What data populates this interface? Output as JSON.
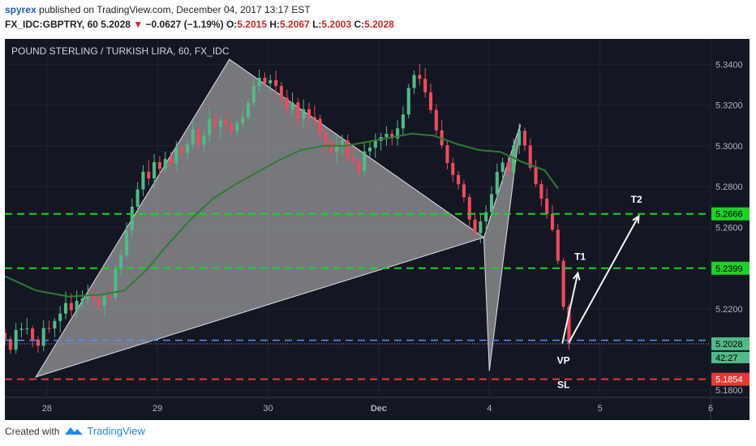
{
  "header": {
    "user": "spyrex",
    "published": " published on TradingView.com, December 04, 2017 13:17 EST",
    "symbol": "FX_IDC:GBPTRY, 60 ",
    "last": "5.2028",
    "change": "−0.0627 (−1.19%)",
    "o_label": "O:",
    "o": "5.2015",
    "h_label": "H:",
    "h": "5.2067",
    "l_label": "L:",
    "l": "5.2003",
    "c_label": "C:",
    "c": "5.2028"
  },
  "footer": {
    "created_with": "Created with",
    "brand": "TradingView"
  },
  "colors": {
    "background": "#131722",
    "up": "#53b987",
    "down": "#eb4d5c",
    "ma": "#2e7d32",
    "pattern_fill": "#c8c8c8",
    "green_level": "#1fd12b",
    "red_level": "#e53935",
    "blue_level": "#5b8def",
    "white_arrow": "#f5f5f5"
  },
  "chart_data": {
    "type": "candlestick",
    "title": "POUND STERLING / TURKISH LIRA, 60, FX_IDC",
    "y_ticks": [
      "5.3400",
      "5.3200",
      "5.3000",
      "5.2800",
      "5.2600",
      "5.2200",
      "5.1800"
    ],
    "ylim": [
      5.1765,
      5.3525
    ],
    "x_ticks": [
      {
        "x": 1.0,
        "label": "28"
      },
      {
        "x": 2.0,
        "label": "29"
      },
      {
        "x": 3.0,
        "label": "30"
      },
      {
        "x": 4.0,
        "label": "Dec"
      },
      {
        "x": 5.0,
        "label": "4"
      },
      {
        "x": 6.0,
        "label": "5"
      },
      {
        "x": 7.0,
        "label": "6"
      }
    ],
    "xlim": [
      0.62,
      7.0
    ],
    "price_labels": [
      {
        "value": 5.2666,
        "label": "5.2666",
        "color": "#1fd12b"
      },
      {
        "value": 5.2399,
        "label": "5.2399",
        "color": "#1fd12b"
      },
      {
        "value": 5.2028,
        "label": "5.2028",
        "color": "#53b987"
      },
      {
        "value": 5.1854,
        "label": "5.1854",
        "color": "#e53935"
      }
    ],
    "countdown": "42:27",
    "levels": [
      {
        "value": 5.2666,
        "kind": "target"
      },
      {
        "value": 5.2399,
        "kind": "target"
      },
      {
        "value": 5.2045,
        "kind": "entry"
      },
      {
        "value": 5.1854,
        "kind": "stop"
      }
    ],
    "pattern_points": [
      {
        "x": 0.9,
        "y": 5.1865
      },
      {
        "x": 2.65,
        "y": 5.3425
      },
      {
        "x": 4.95,
        "y": 5.255
      },
      {
        "x": 5.28,
        "y": 5.3105
      },
      {
        "x": 5.0,
        "y": 5.1895
      }
    ],
    "annotations": [
      {
        "text": "T1",
        "x": 5.82,
        "y": 5.244
      },
      {
        "text": "T2",
        "x": 6.33,
        "y": 5.272
      },
      {
        "text": "VP",
        "x": 5.67,
        "y": 5.193
      },
      {
        "text": "SL",
        "x": 5.67,
        "y": 5.181
      }
    ],
    "arrows": [
      {
        "from": [
          5.66,
          5.203
        ],
        "to": [
          5.8,
          5.2375
        ]
      },
      {
        "from": [
          5.72,
          5.2035
        ],
        "to": [
          6.35,
          5.2655
        ]
      }
    ],
    "ma": [
      [
        0.62,
        5.236
      ],
      [
        0.9,
        5.229
      ],
      [
        1.2,
        5.226
      ],
      [
        1.5,
        5.227
      ],
      [
        1.7,
        5.229
      ],
      [
        1.9,
        5.239
      ],
      [
        2.1,
        5.252
      ],
      [
        2.3,
        5.264
      ],
      [
        2.5,
        5.274
      ],
      [
        2.7,
        5.281
      ],
      [
        2.9,
        5.287
      ],
      [
        3.1,
        5.293
      ],
      [
        3.3,
        5.298
      ],
      [
        3.5,
        5.3
      ],
      [
        3.7,
        5.3
      ],
      [
        3.9,
        5.302
      ],
      [
        4.1,
        5.304
      ],
      [
        4.3,
        5.306
      ],
      [
        4.5,
        5.305
      ],
      [
        4.7,
        5.301
      ],
      [
        4.9,
        5.298
      ],
      [
        5.1,
        5.297
      ],
      [
        5.3,
        5.292
      ],
      [
        5.5,
        5.288
      ],
      [
        5.62,
        5.279
      ]
    ],
    "ohlc": [
      [
        0.62,
        5.2082,
        5.2104,
        5.2019,
        5.2051
      ],
      [
        0.67,
        5.2051,
        5.2065,
        5.1977,
        5.1999
      ],
      [
        0.72,
        5.1999,
        5.2129,
        5.1981,
        5.2096
      ],
      [
        0.77,
        5.2096,
        5.2132,
        5.206,
        5.2102
      ],
      [
        0.82,
        5.2102,
        5.2155,
        5.2074,
        5.2103
      ],
      [
        0.87,
        5.2103,
        5.2116,
        5.2011,
        5.2049
      ],
      [
        0.92,
        5.2049,
        5.2066,
        5.1984,
        5.2018
      ],
      [
        0.97,
        5.2018,
        5.2143,
        5.1991,
        5.2105
      ],
      [
        1.02,
        5.2105,
        5.2142,
        5.208,
        5.2103
      ],
      [
        1.07,
        5.2103,
        5.2155,
        5.206,
        5.214
      ],
      [
        1.12,
        5.214,
        5.2213,
        5.2084,
        5.2176
      ],
      [
        1.17,
        5.2176,
        5.2285,
        5.2149,
        5.2228
      ],
      [
        1.22,
        5.2228,
        5.2275,
        5.2162,
        5.2193
      ],
      [
        1.27,
        5.2193,
        5.2289,
        5.2153,
        5.2239
      ],
      [
        1.32,
        5.2239,
        5.229,
        5.2205,
        5.225
      ],
      [
        1.37,
        5.225,
        5.2319,
        5.2224,
        5.2263
      ],
      [
        1.42,
        5.2263,
        5.2299,
        5.2218,
        5.225
      ],
      [
        1.47,
        5.225,
        5.2268,
        5.2187,
        5.2214
      ],
      [
        1.52,
        5.2214,
        5.228,
        5.2164,
        5.2262
      ],
      [
        1.57,
        5.2262,
        5.2313,
        5.2233,
        5.2254
      ],
      [
        1.62,
        5.2254,
        5.2415,
        5.2236,
        5.2395
      ],
      [
        1.67,
        5.2395,
        5.249,
        5.236,
        5.2462
      ],
      [
        1.72,
        5.2462,
        5.2623,
        5.2442,
        5.2585
      ],
      [
        1.77,
        5.2585,
        5.2741,
        5.2548,
        5.2701
      ],
      [
        1.82,
        5.2701,
        5.2822,
        5.267,
        5.2786
      ],
      [
        1.87,
        5.2786,
        5.2905,
        5.2754,
        5.2873
      ],
      [
        1.92,
        5.2873,
        5.293,
        5.2808,
        5.284
      ],
      [
        1.97,
        5.284,
        5.296,
        5.2788,
        5.292
      ],
      [
        2.02,
        5.292,
        5.295,
        5.2858,
        5.2887
      ],
      [
        2.07,
        5.2887,
        5.2972,
        5.2867,
        5.2936
      ],
      [
        2.12,
        5.2936,
        5.2972,
        5.2888,
        5.2912
      ],
      [
        2.17,
        5.2912,
        5.3022,
        5.288,
        5.2995
      ],
      [
        2.22,
        5.2995,
        5.3009,
        5.2932,
        5.2965
      ],
      [
        2.27,
        5.2965,
        5.3034,
        5.2932,
        5.3006
      ],
      [
        2.32,
        5.3006,
        5.3118,
        5.2988,
        5.308
      ],
      [
        2.37,
        5.308,
        5.3093,
        5.2982,
        5.3005
      ],
      [
        2.42,
        5.3005,
        5.3074,
        5.2972,
        5.3052
      ],
      [
        2.47,
        5.3052,
        5.3182,
        5.3019,
        5.3133
      ],
      [
        2.52,
        5.3133,
        5.3162,
        5.3043,
        5.3093
      ],
      [
        2.57,
        5.3093,
        5.3146,
        5.3036,
        5.3124
      ],
      [
        2.62,
        5.3124,
        5.3168,
        5.3064,
        5.3102
      ],
      [
        2.67,
        5.3102,
        5.3129,
        5.3047,
        5.3072
      ],
      [
        2.72,
        5.3072,
        5.3124,
        5.3046,
        5.311
      ],
      [
        2.77,
        5.311,
        5.318,
        5.3079,
        5.3141
      ],
      [
        2.82,
        5.3141,
        5.3228,
        5.3124,
        5.3212
      ],
      [
        2.87,
        5.3212,
        5.3329,
        5.3194,
        5.3293
      ],
      [
        2.92,
        5.3293,
        5.3374,
        5.3262,
        5.3334
      ],
      [
        2.97,
        5.3334,
        5.336,
        5.3285,
        5.3307
      ],
      [
        3.02,
        5.3307,
        5.335,
        5.3259,
        5.3322
      ],
      [
        3.07,
        5.3322,
        5.3369,
        5.3251,
        5.3294
      ],
      [
        3.12,
        5.3294,
        5.3314,
        5.3196,
        5.3236
      ],
      [
        3.17,
        5.3236,
        5.3275,
        5.3147,
        5.318
      ],
      [
        3.22,
        5.318,
        5.3262,
        5.3153,
        5.3213
      ],
      [
        3.27,
        5.3213,
        5.3236,
        5.3095,
        5.3133
      ],
      [
        3.32,
        5.3133,
        5.3228,
        5.3091,
        5.318
      ],
      [
        3.37,
        5.318,
        5.3213,
        5.3099,
        5.3141
      ],
      [
        3.42,
        5.3141,
        5.3197,
        5.3089,
        5.3133
      ],
      [
        3.47,
        5.3133,
        5.3153,
        5.3028,
        5.306
      ],
      [
        3.52,
        5.306,
        5.3084,
        5.2975,
        5.3017
      ],
      [
        3.57,
        5.3017,
        5.3035,
        5.2946,
        5.2972
      ],
      [
        3.62,
        5.2972,
        5.3047,
        5.2913,
        5.2998
      ],
      [
        3.67,
        5.2998,
        5.3054,
        5.2954,
        5.3026
      ],
      [
        3.72,
        5.3026,
        5.3055,
        5.2916,
        5.2941
      ],
      [
        3.77,
        5.2941,
        5.2987,
        5.2899,
        5.2922
      ],
      [
        3.82,
        5.2922,
        5.2938,
        5.2851,
        5.2876
      ],
      [
        3.87,
        5.2876,
        5.3015,
        5.2846,
        5.2973
      ],
      [
        3.92,
        5.2973,
        5.3025,
        5.2946,
        5.2991
      ],
      [
        3.97,
        5.2991,
        5.3061,
        5.2941,
        5.3024
      ],
      [
        4.02,
        5.3024,
        5.3064,
        5.2977,
        5.3043
      ],
      [
        4.07,
        5.3043,
        5.3096,
        5.3,
        5.3059
      ],
      [
        4.12,
        5.3059,
        5.3079,
        5.3004,
        5.3037
      ],
      [
        4.17,
        5.3037,
        5.3125,
        5.3002,
        5.3086
      ],
      [
        4.22,
        5.3086,
        5.3196,
        5.3055,
        5.3154
      ],
      [
        4.27,
        5.3154,
        5.3304,
        5.3135,
        5.3284
      ],
      [
        4.32,
        5.3284,
        5.3371,
        5.3255,
        5.3348
      ],
      [
        4.37,
        5.3348,
        5.3402,
        5.3297,
        5.3329
      ],
      [
        4.42,
        5.3329,
        5.3382,
        5.3237,
        5.3263
      ],
      [
        4.47,
        5.3263,
        5.3306,
        5.3159,
        5.3176
      ],
      [
        4.52,
        5.3176,
        5.3204,
        5.3053,
        5.3076
      ],
      [
        4.57,
        5.3076,
        5.3126,
        5.2987,
        5.3003
      ],
      [
        4.62,
        5.3003,
        5.3025,
        5.2885,
        5.2916
      ],
      [
        4.67,
        5.2916,
        5.2941,
        5.2822,
        5.2857
      ],
      [
        4.72,
        5.2857,
        5.2877,
        5.2785,
        5.2811
      ],
      [
        4.77,
        5.2811,
        5.2834,
        5.2724,
        5.2748
      ],
      [
        4.82,
        5.2748,
        5.2765,
        5.2605,
        5.2638
      ],
      [
        4.87,
        5.2638,
        5.2674,
        5.2539,
        5.2571
      ],
      [
        4.92,
        5.2571,
        5.2664,
        5.2522,
        5.2629
      ],
      [
        4.97,
        5.2629,
        5.2708,
        5.2578,
        5.2674
      ],
      [
        5.02,
        5.2674,
        5.2801,
        5.2656,
        5.2763
      ],
      [
        5.07,
        5.2763,
        5.2913,
        5.2745,
        5.2872
      ],
      [
        5.12,
        5.2872,
        5.2941,
        5.281,
        5.2918
      ],
      [
        5.17,
        5.2918,
        5.2955,
        5.2851,
        5.2873
      ],
      [
        5.22,
        5.2873,
        5.3035,
        5.2847,
        5.3003
      ],
      [
        5.27,
        5.3003,
        5.3111,
        5.296,
        5.3074
      ],
      [
        5.32,
        5.3074,
        5.3089,
        5.2974,
        5.3002
      ],
      [
        5.37,
        5.3002,
        5.3038,
        5.2879,
        5.2893
      ],
      [
        5.42,
        5.2893,
        5.2932,
        5.2799,
        5.2812
      ],
      [
        5.47,
        5.2812,
        5.283,
        5.2704,
        5.2741
      ],
      [
        5.52,
        5.2741,
        5.279,
        5.2641,
        5.2666
      ],
      [
        5.57,
        5.2666,
        5.2709,
        5.2578,
        5.2588
      ],
      [
        5.62,
        5.2588,
        5.2614,
        5.2418,
        5.2435
      ],
      [
        5.67,
        5.2435,
        5.2449,
        5.2193,
        5.221
      ],
      [
        5.72,
        5.221,
        5.2225,
        5.1999,
        5.2028
      ]
    ]
  }
}
